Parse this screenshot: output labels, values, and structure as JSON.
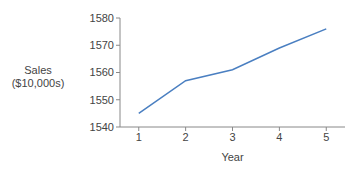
{
  "chart_data": {
    "type": "line",
    "x": [
      1,
      2,
      3,
      4,
      5
    ],
    "values": [
      1545,
      1557,
      1561,
      1569,
      1576
    ],
    "color": "#4a7fc1",
    "xlabel": "Year",
    "ylabel": "Sales ($10,000s)",
    "xlim": [
      0.6,
      5.4
    ],
    "xticks": [
      1,
      2,
      3,
      4,
      5
    ],
    "ylim": [
      1540,
      1580
    ],
    "yticks": [
      1540,
      1550,
      1560,
      1570,
      1580
    ],
    "grid": false
  }
}
